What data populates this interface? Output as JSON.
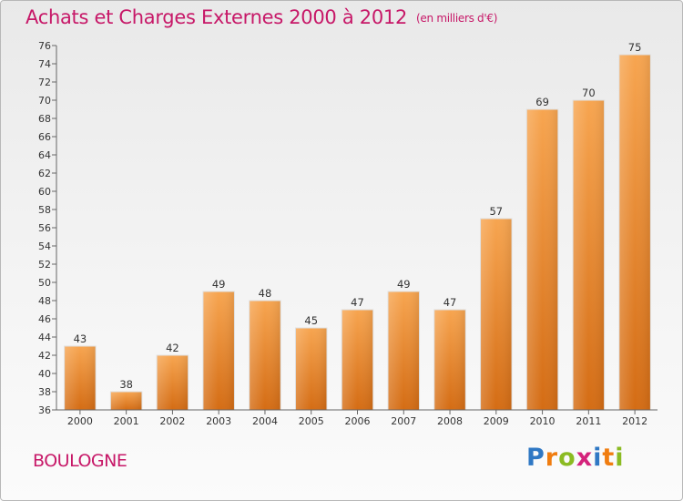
{
  "header": {
    "title": "Achats et Charges Externes 2000 à 2012",
    "subtitle": "(en milliers d'€)"
  },
  "footer": {
    "commune": "BOULOGNE",
    "logo_letters": [
      {
        "char": "P",
        "color": "#2f78c4"
      },
      {
        "char": "r",
        "color": "#f07d10"
      },
      {
        "char": "o",
        "color": "#8bbb22"
      },
      {
        "char": "x",
        "color": "#d4237b"
      },
      {
        "char": "i",
        "color": "#2f78c4"
      },
      {
        "char": "t",
        "color": "#f07d10"
      },
      {
        "char": "i",
        "color": "#8bbb22"
      }
    ]
  },
  "chart_data": {
    "type": "bar",
    "title": "Achats et Charges Externes 2000 à 2012",
    "subtitle": "(en milliers d'€)",
    "categories": [
      "2000",
      "2001",
      "2002",
      "2003",
      "2004",
      "2005",
      "2006",
      "2007",
      "2008",
      "2009",
      "2010",
      "2011",
      "2012"
    ],
    "values": [
      43,
      38,
      42,
      49,
      48,
      45,
      47,
      49,
      47,
      57,
      69,
      70,
      75
    ],
    "ylim": [
      36,
      76
    ],
    "ytick_step": 2,
    "grid": false,
    "bar_color_top": "#f7a550",
    "bar_color_bottom": "#d46c14"
  }
}
